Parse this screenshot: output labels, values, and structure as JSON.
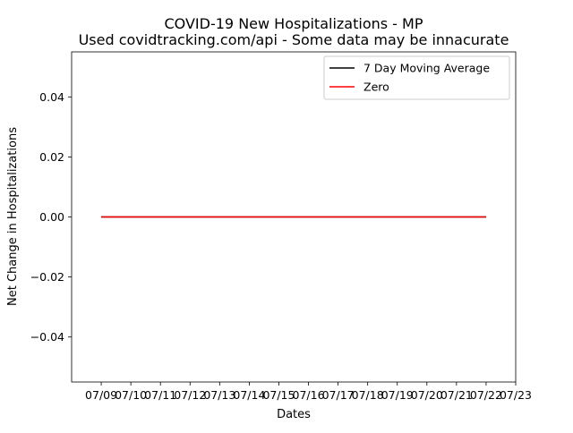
{
  "chart_data": {
    "type": "line",
    "title": "COVID-19 New Hospitalizations - MP",
    "subtitle": "Used covidtracking.com/api - Some data may be innacurate",
    "xlabel": "Dates",
    "ylabel": "Net Change in Hospitalizations",
    "x_ticks": [
      "07/09",
      "07/10",
      "07/11",
      "07/12",
      "07/13",
      "07/14",
      "07/15",
      "07/16",
      "07/17",
      "07/18",
      "07/19",
      "07/20",
      "07/21",
      "07/22",
      "07/23"
    ],
    "y_ticks": [
      -0.04,
      -0.02,
      0.0,
      0.02,
      0.04
    ],
    "y_tick_labels": [
      "−0.04",
      "−0.02",
      "0.00",
      "0.02",
      "0.04"
    ],
    "ylim": [
      -0.055,
      0.055
    ],
    "xlim": [
      "07/08",
      "07/23"
    ],
    "grid": false,
    "legend_position": "top-right",
    "series": [
      {
        "name": "7 Day Moving Average",
        "color": "#000000",
        "x": [
          "07/09",
          "07/10",
          "07/11",
          "07/12",
          "07/13",
          "07/14",
          "07/15",
          "07/16",
          "07/17",
          "07/18",
          "07/19",
          "07/20",
          "07/21",
          "07/22"
        ],
        "values": [
          0,
          0,
          0,
          0,
          0,
          0,
          0,
          0,
          0,
          0,
          0,
          0,
          0,
          0
        ]
      },
      {
        "name": "Zero",
        "color": "#ff0000",
        "x": [
          "07/09",
          "07/10",
          "07/11",
          "07/12",
          "07/13",
          "07/14",
          "07/15",
          "07/16",
          "07/17",
          "07/18",
          "07/19",
          "07/20",
          "07/21",
          "07/22"
        ],
        "values": [
          0,
          0,
          0,
          0,
          0,
          0,
          0,
          0,
          0,
          0,
          0,
          0,
          0,
          0
        ]
      }
    ]
  }
}
